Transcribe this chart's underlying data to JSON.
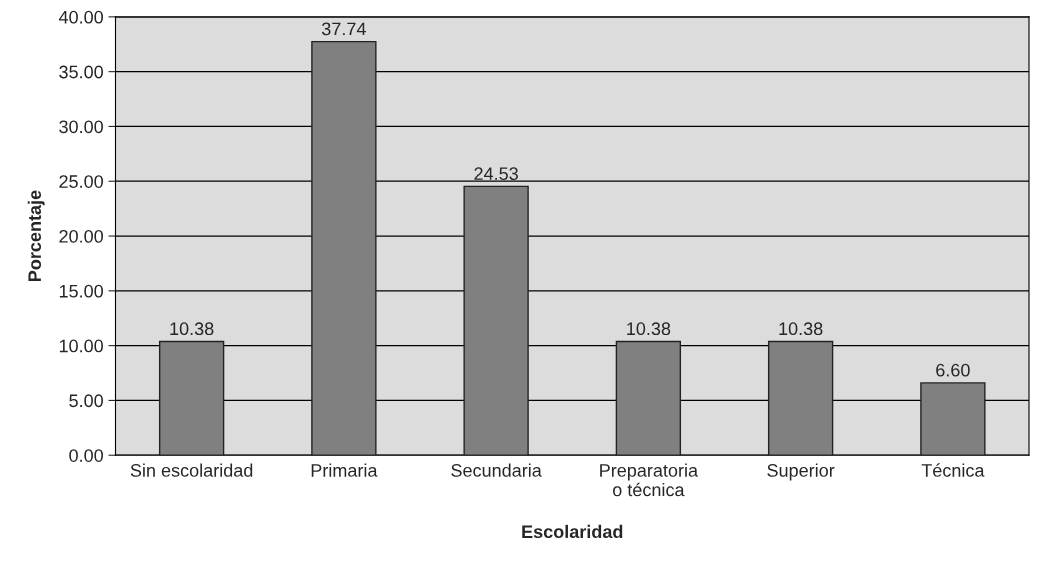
{
  "chart_data": {
    "type": "bar",
    "xlabel": "Escolaridad",
    "ylabel": "Porcentaje",
    "categories": [
      "Sin escolaridad",
      "Primaria",
      "Secundaria",
      "Preparatoria\no técnica",
      "Superior",
      "Técnica"
    ],
    "values": [
      10.38,
      37.74,
      24.53,
      10.38,
      10.38,
      6.6
    ],
    "value_labels": [
      "10.38",
      "37.74",
      "24.53",
      "10.38",
      "10.38",
      "6.60"
    ],
    "color": "#808080",
    "ylim": [
      0,
      40
    ],
    "yticks": [
      {
        "value": 0,
        "label": "0.00"
      },
      {
        "value": 5,
        "label": "5.00"
      },
      {
        "value": 10,
        "label": "10.00"
      },
      {
        "value": 15,
        "label": "15.00"
      },
      {
        "value": 20,
        "label": "20.00"
      },
      {
        "value": 25,
        "label": "25.00"
      },
      {
        "value": 30,
        "label": "30.00"
      },
      {
        "value": 35,
        "label": "35.00"
      },
      {
        "value": 40,
        "label": "40.00"
      }
    ],
    "grid": "y",
    "legend": false
  }
}
